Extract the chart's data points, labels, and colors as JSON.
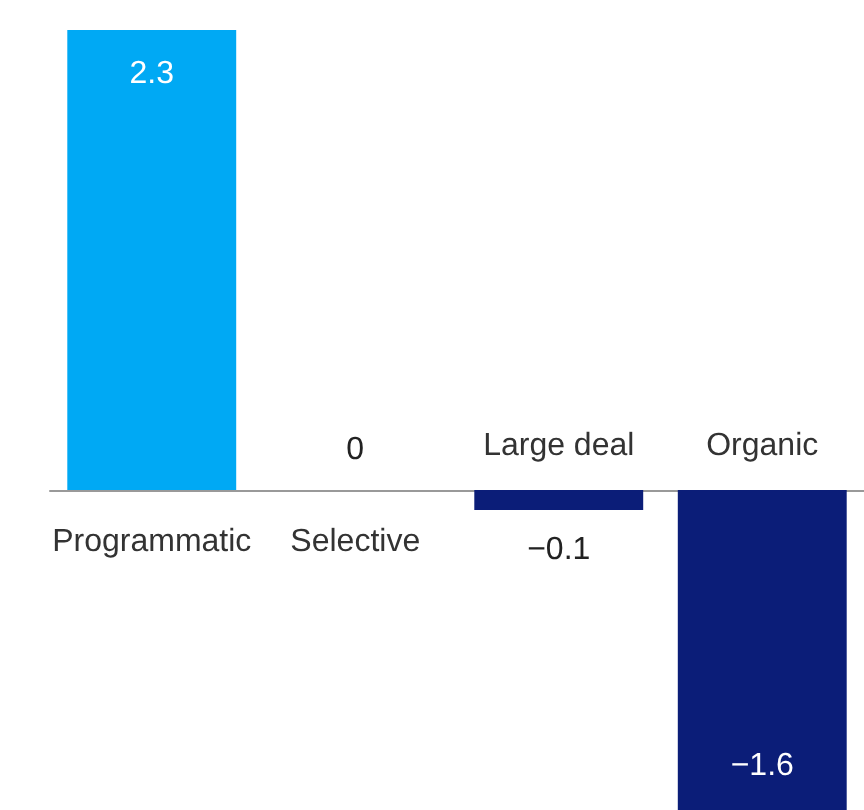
{
  "chart_data": {
    "type": "bar",
    "categories": [
      "Programmatic",
      "Selective",
      "Large deal",
      "Organic"
    ],
    "values": [
      2.3,
      0,
      -0.1,
      -1.6
    ],
    "colors": [
      "#00a9f4",
      "#0b1d78",
      "#0b1d78",
      "#0b1d78"
    ],
    "value_labels": [
      "2.3",
      "0",
      "−0.1",
      "−1.6"
    ]
  }
}
